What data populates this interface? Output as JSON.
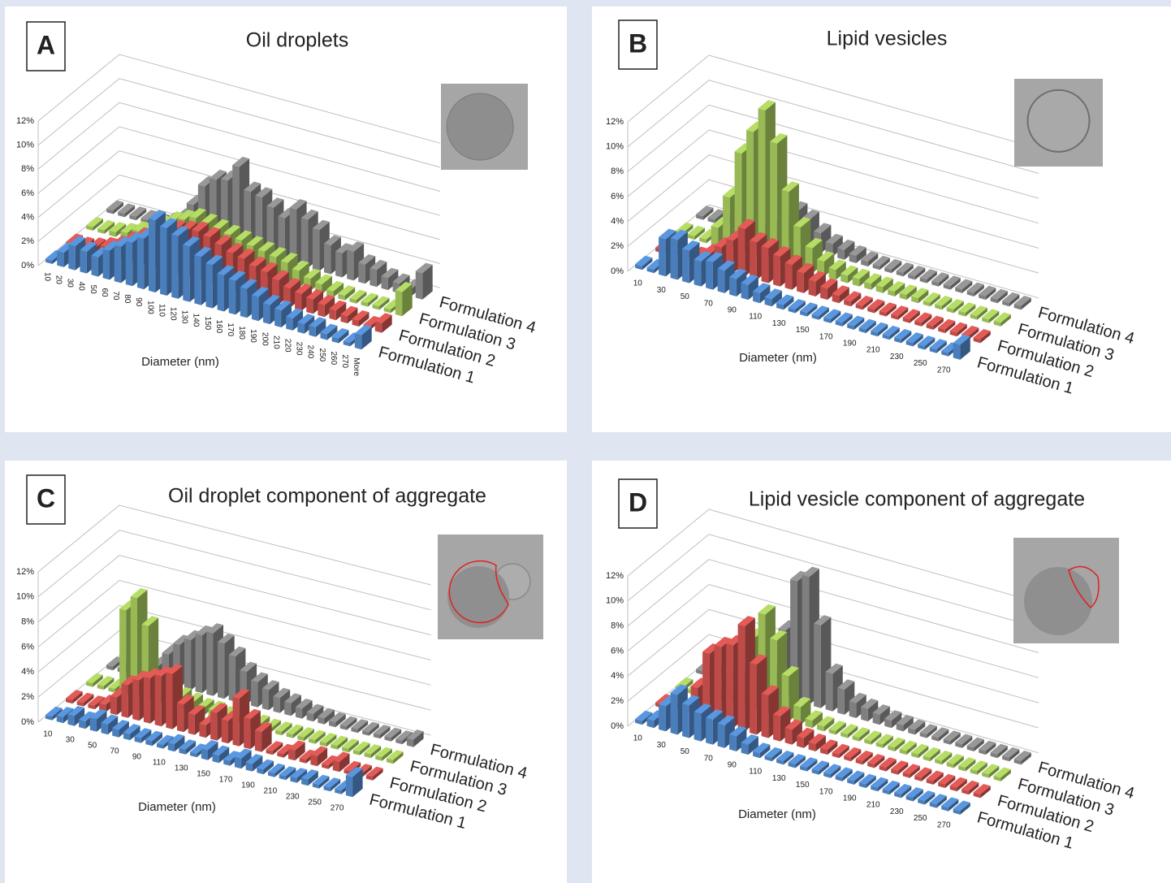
{
  "chart_data": [
    {
      "type": "bar3d",
      "panel_label": "A",
      "title": "Oil droplets",
      "xlabel": "Diameter (nm)",
      "xtick_rotation": 90,
      "categories": [
        "10",
        "20",
        "30",
        "40",
        "50",
        "60",
        "70",
        "80",
        "90",
        "100",
        "110",
        "120",
        "130",
        "140",
        "150",
        "160",
        "170",
        "180",
        "190",
        "200",
        "210",
        "220",
        "230",
        "240",
        "250",
        "260",
        "270",
        "More"
      ],
      "ylim": [
        0,
        12
      ],
      "yticks": [
        {
          "value": 0,
          "label": "0%"
        },
        {
          "value": 2,
          "label": "2%"
        },
        {
          "value": 4,
          "label": "4%"
        },
        {
          "value": 6,
          "label": "6%"
        },
        {
          "value": 8,
          "label": "8%"
        },
        {
          "value": 10,
          "label": "10%"
        },
        {
          "value": 12,
          "label": "12%"
        }
      ],
      "grid": true,
      "series": [
        {
          "name": "Formulation 1",
          "color": "#4a7ebb",
          "label_color": "#2e64a8",
          "values": [
            0.3,
            1.2,
            2.0,
            1.8,
            1.6,
            2.4,
            3.0,
            3.6,
            4.2,
            6.0,
            5.6,
            5.2,
            4.6,
            4.0,
            3.6,
            3.0,
            2.8,
            2.4,
            2.0,
            1.6,
            1.4,
            1.0,
            0.8,
            0.8,
            0.5,
            0.4,
            0.3,
            1.2
          ]
        },
        {
          "name": "Formulation 2",
          "color": "#be4b48",
          "label_color": "#c0392f",
          "values": [
            0.3,
            0.3,
            0.5,
            0.8,
            1.2,
            1.8,
            2.4,
            3.0,
            3.4,
            3.8,
            4.0,
            4.2,
            4.0,
            3.6,
            3.2,
            3.0,
            2.6,
            2.4,
            2.0,
            1.6,
            1.4,
            1.2,
            1.0,
            0.8,
            0.6,
            0.5,
            0.3,
            0.8
          ]
        },
        {
          "name": "Formulation 3",
          "color": "#98b954",
          "label_color": "#86b03e",
          "values": [
            0.3,
            0.3,
            0.4,
            0.6,
            1.0,
            1.4,
            2.0,
            2.6,
            3.0,
            3.4,
            3.2,
            3.0,
            2.8,
            2.6,
            2.4,
            2.2,
            2.0,
            1.8,
            1.4,
            1.0,
            0.8,
            0.5,
            0.4,
            0.3,
            0.3,
            0.3,
            0.3,
            2.0
          ]
        },
        {
          "name": "Formulation 4",
          "color": "#7f7f7f",
          "label_color": "#111111",
          "values": [
            0.3,
            0.3,
            0.3,
            0.3,
            0.3,
            0.6,
            1.2,
            2.6,
            4.4,
            5.2,
            5.4,
            6.8,
            5.0,
            4.8,
            4.2,
            3.6,
            4.6,
            4.0,
            3.4,
            2.4,
            2.0,
            2.4,
            1.6,
            1.4,
            1.0,
            0.8,
            0.6,
            2.2
          ]
        }
      ]
    },
    {
      "type": "bar3d",
      "panel_label": "B",
      "title": "Lipid vesicles",
      "xlabel": "Diameter (nm)",
      "xtick_rotation": 0,
      "categories": [
        "10",
        null,
        "30",
        null,
        "50",
        null,
        "70",
        null,
        "90",
        null,
        "110",
        null,
        "130",
        null,
        "150",
        null,
        "170",
        null,
        "190",
        null,
        "210",
        null,
        "230",
        null,
        "250",
        null,
        "270",
        null
      ],
      "ylim": [
        0,
        12
      ],
      "yticks": [
        {
          "value": 0,
          "label": "0%"
        },
        {
          "value": 2,
          "label": "2%"
        },
        {
          "value": 4,
          "label": "4%"
        },
        {
          "value": 6,
          "label": "6%"
        },
        {
          "value": 8,
          "label": "8%"
        },
        {
          "value": 10,
          "label": "10%"
        },
        {
          "value": 12,
          "label": "12%"
        }
      ],
      "grid": true,
      "series": [
        {
          "name": "Formulation 1",
          "color": "#4a7ebb",
          "label_color": "#2e64a8",
          "values": [
            0.3,
            0.3,
            3.0,
            3.2,
            2.6,
            2.0,
            2.2,
            1.8,
            1.4,
            1.2,
            0.8,
            0.6,
            0.4,
            0.3,
            0.3,
            0.3,
            0.3,
            0.3,
            0.3,
            0.3,
            0.3,
            0.3,
            0.3,
            0.3,
            0.3,
            0.3,
            0.3,
            1.2
          ]
        },
        {
          "name": "Formulation 2",
          "color": "#be4b48",
          "label_color": "#c0392f",
          "values": [
            0.3,
            0.3,
            0.3,
            0.5,
            1.0,
            1.8,
            2.6,
            3.8,
            3.0,
            2.8,
            2.4,
            2.0,
            1.6,
            1.2,
            0.9,
            0.6,
            0.4,
            0.3,
            0.3,
            0.3,
            0.3,
            0.3,
            0.3,
            0.3,
            0.3,
            0.3,
            0.3,
            0.3
          ]
        },
        {
          "name": "Formulation 3",
          "color": "#98b954",
          "label_color": "#86b03e",
          "values": [
            0.3,
            0.3,
            0.3,
            1.5,
            4.2,
            8.0,
            10.0,
            12.0,
            9.6,
            6.0,
            3.4,
            2.0,
            1.2,
            0.8,
            0.6,
            0.6,
            0.5,
            0.5,
            0.4,
            0.4,
            0.4,
            0.3,
            0.3,
            0.3,
            0.3,
            0.3,
            0.3,
            0.3
          ]
        },
        {
          "name": "Formulation 4",
          "color": "#7f7f7f",
          "label_color": "#111111",
          "values": [
            0.3,
            0.3,
            0.3,
            0.3,
            0.3,
            0.3,
            0.8,
            1.6,
            2.8,
            2.4,
            1.6,
            1.0,
            0.8,
            0.6,
            0.4,
            0.3,
            0.3,
            0.3,
            0.3,
            0.3,
            0.3,
            0.3,
            0.3,
            0.3,
            0.3,
            0.3,
            0.3,
            0.3
          ]
        }
      ]
    },
    {
      "type": "bar3d",
      "panel_label": "C",
      "title": "Oil droplet component of aggregate",
      "xlabel": "Diameter (nm)",
      "xtick_rotation": 0,
      "categories": [
        "10",
        null,
        "30",
        null,
        "50",
        null,
        "70",
        null,
        "90",
        null,
        "110",
        null,
        "130",
        null,
        "150",
        null,
        "170",
        null,
        "190",
        null,
        "210",
        null,
        "230",
        null,
        "250",
        null,
        "270",
        null
      ],
      "ylim": [
        0,
        12
      ],
      "yticks": [
        {
          "value": 0,
          "label": "0%"
        },
        {
          "value": 2,
          "label": "2%"
        },
        {
          "value": 4,
          "label": "4%"
        },
        {
          "value": 6,
          "label": "6%"
        },
        {
          "value": 8,
          "label": "8%"
        },
        {
          "value": 10,
          "label": "10%"
        },
        {
          "value": 12,
          "label": "12%"
        }
      ],
      "grid": true,
      "series": [
        {
          "name": "Formulation 1",
          "color": "#4a7ebb",
          "label_color": "#2e64a8",
          "values": [
            0.3,
            0.5,
            0.8,
            0.6,
            1.0,
            0.8,
            0.6,
            0.5,
            0.4,
            0.4,
            0.3,
            0.6,
            0.4,
            0.3,
            0.8,
            0.6,
            0.4,
            0.8,
            0.6,
            0.4,
            0.3,
            0.3,
            0.4,
            0.5,
            0.3,
            0.3,
            0.3,
            1.6
          ]
        },
        {
          "name": "Formulation 2",
          "color": "#be4b48",
          "label_color": "#c0392f",
          "values": [
            0.3,
            0.3,
            0.3,
            0.6,
            1.4,
            2.6,
            3.2,
            3.6,
            4.0,
            4.4,
            2.2,
            1.6,
            1.0,
            2.2,
            1.8,
            3.8,
            2.4,
            1.6,
            0.3,
            0.3,
            0.8,
            0.3,
            0.8,
            0.3,
            0.8,
            0.3,
            0.3,
            0.3
          ]
        },
        {
          "name": "Formulation 3",
          "color": "#98b954",
          "label_color": "#86b03e",
          "values": [
            0.3,
            0.3,
            0.3,
            6.8,
            8.0,
            6.0,
            2.0,
            1.4,
            1.0,
            0.8,
            0.6,
            0.6,
            0.4,
            0.4,
            0.4,
            0.4,
            0.3,
            0.3,
            0.3,
            0.3,
            0.3,
            0.3,
            0.3,
            0.3,
            0.3,
            0.3,
            0.3,
            0.3
          ]
        },
        {
          "name": "Formulation 4",
          "color": "#7f7f7f",
          "label_color": "#111111",
          "values": [
            0.3,
            0.3,
            0.3,
            0.3,
            1.2,
            2.4,
            3.4,
            4.0,
            4.6,
            5.0,
            4.4,
            3.6,
            2.6,
            2.0,
            1.6,
            1.2,
            1.0,
            0.8,
            0.6,
            0.5,
            0.4,
            0.3,
            0.3,
            0.3,
            0.3,
            0.3,
            0.3,
            0.6
          ]
        }
      ]
    },
    {
      "type": "bar3d",
      "panel_label": "D",
      "title": "Lipid vesicle component of aggregate",
      "xlabel": "Diameter (nm)",
      "xtick_rotation": 0,
      "categories": [
        "10",
        null,
        "30",
        null,
        "50",
        null,
        "70",
        null,
        "90",
        null,
        "110",
        null,
        "130",
        null,
        "150",
        null,
        "170",
        null,
        "190",
        null,
        "210",
        null,
        "230",
        null,
        "250",
        null,
        "270",
        null
      ],
      "ylim": [
        0,
        12
      ],
      "yticks": [
        {
          "value": 0,
          "label": "0%"
        },
        {
          "value": 2,
          "label": "2%"
        },
        {
          "value": 4,
          "label": "4%"
        },
        {
          "value": 6,
          "label": "6%"
        },
        {
          "value": 8,
          "label": "8%"
        },
        {
          "value": 10,
          "label": "10%"
        },
        {
          "value": 12,
          "label": "12%"
        }
      ],
      "grid": true,
      "series": [
        {
          "name": "Formulation 1",
          "color": "#4a7ebb",
          "label_color": "#2e64a8",
          "values": [
            0.3,
            0.6,
            2.0,
            3.2,
            2.6,
            2.2,
            2.0,
            1.8,
            1.2,
            0.8,
            0.4,
            0.3,
            0.3,
            0.3,
            0.3,
            0.3,
            0.3,
            0.3,
            0.3,
            0.3,
            0.3,
            0.3,
            0.3,
            0.3,
            0.3,
            0.3,
            0.3,
            0.3
          ]
        },
        {
          "name": "Formulation 2",
          "color": "#be4b48",
          "label_color": "#c0392f",
          "values": [
            0.3,
            0.3,
            0.3,
            2.4,
            5.4,
            6.2,
            6.6,
            8.4,
            5.6,
            3.4,
            2.0,
            1.2,
            0.8,
            0.6,
            0.4,
            0.3,
            0.3,
            0.3,
            0.3,
            0.3,
            0.3,
            0.3,
            0.3,
            0.3,
            0.3,
            0.3,
            0.3,
            0.3
          ]
        },
        {
          "name": "Formulation 3",
          "color": "#98b954",
          "label_color": "#86b03e",
          "values": [
            0.3,
            0.3,
            0.3,
            0.3,
            0.6,
            1.0,
            5.8,
            8.0,
            6.2,
            3.6,
            1.4,
            0.6,
            0.4,
            0.3,
            0.3,
            0.3,
            0.3,
            0.3,
            0.3,
            0.3,
            0.3,
            0.3,
            0.3,
            0.3,
            0.3,
            0.3,
            0.3,
            0.3
          ]
        },
        {
          "name": "Formulation 4",
          "color": "#7f7f7f",
          "label_color": "#111111",
          "values": [
            0.3,
            0.3,
            0.3,
            0.3,
            0.3,
            0.3,
            1.6,
            5.4,
            9.6,
            10.2,
            6.6,
            3.0,
            2.0,
            1.2,
            1.0,
            0.8,
            0.6,
            0.5,
            0.4,
            0.3,
            0.3,
            0.3,
            0.3,
            0.3,
            0.3,
            0.3,
            0.3,
            0.3
          ]
        }
      ]
    }
  ]
}
